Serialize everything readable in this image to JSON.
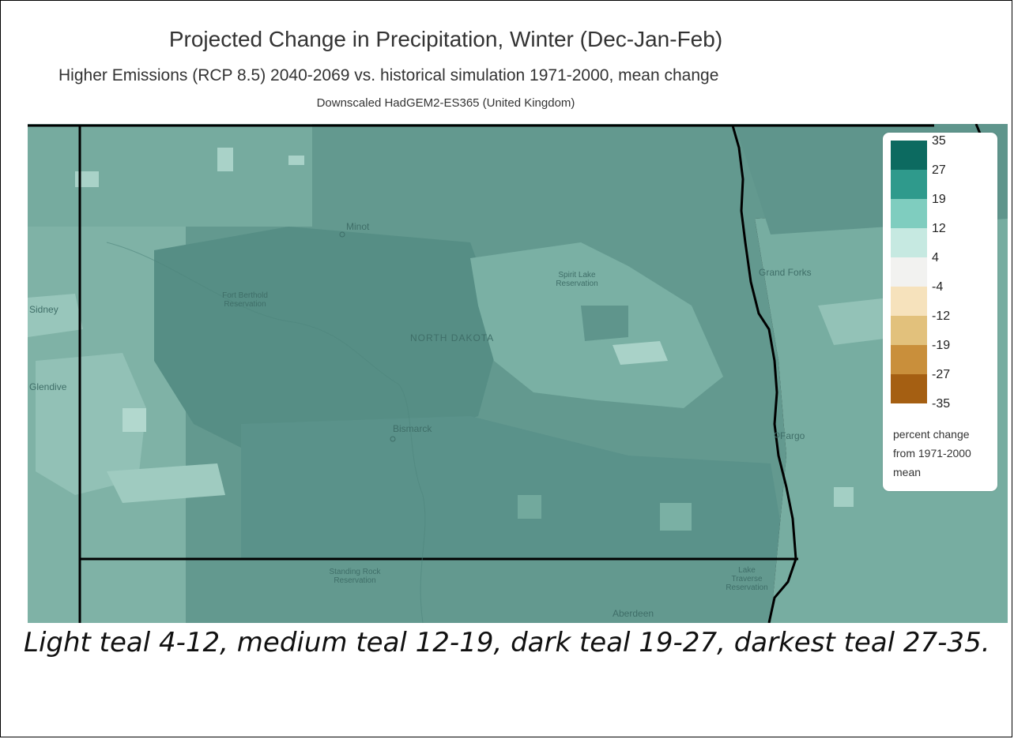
{
  "title": "Projected Change in Precipitation, Winter (Dec-Jan-Feb)",
  "subtitle": "Higher Emissions (RCP 8.5) 2040-2069 vs. historical simulation 1971-2000, mean change",
  "model": "Downscaled HadGEM2-ES365 (United Kingdom)",
  "legend": {
    "ticks": [
      "35",
      "27",
      "19",
      "12",
      "4",
      "-4",
      "-12",
      "-19",
      "-27",
      "-35"
    ],
    "colors": [
      "#0c6a60",
      "#2f9a8c",
      "#7fcdbf",
      "#c6e9e1",
      "#f2f2f0",
      "#f6e2bc",
      "#e2c17c",
      "#c98f3b",
      "#a55f12",
      "#7f3e05"
    ],
    "note": "percent change from 1971-2000 mean"
  },
  "places": {
    "minot": "Minot",
    "fort_berthold": "Fort Berthold Reservation",
    "spirit_lake": "Spirit Lake Reservation",
    "grand_forks": "Grand Forks",
    "north_dakota": "NORTH DAKOTA",
    "bismarck": "Bismarck",
    "fargo": "Fargo",
    "standing_rock": "Standing Rock Reservation",
    "lake_traverse": "Lake Traverse Reservation",
    "aberdeen": "Aberdeen",
    "sidney": "Sidney",
    "glendive": "Glendive"
  },
  "caption": "Light teal 4-12, medium teal 12-19, dark teal 19-27, darkest teal 27-35."
}
